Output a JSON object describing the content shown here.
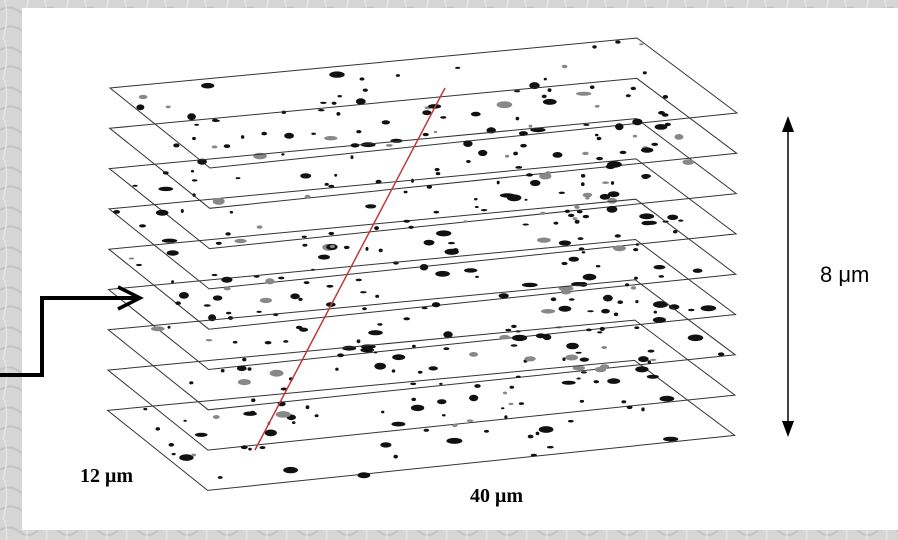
{
  "labels": {
    "height": "8 μm",
    "depth": "12 μm",
    "width": "40 μm"
  }
}
